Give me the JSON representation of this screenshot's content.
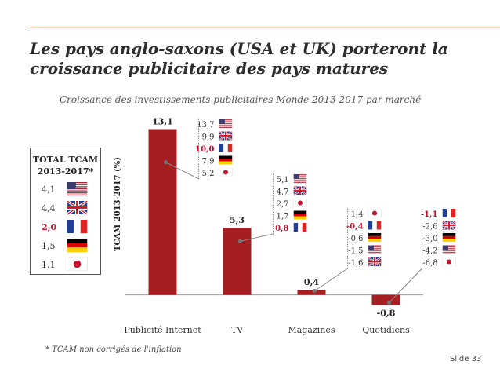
{
  "header": {
    "title": "Les pays anglo-saxons (USA et UK) porteront la croissance publicitaire des pays matures",
    "subtitle": "Croissance des investissements publicitaires Monde 2013-2017 par marché"
  },
  "total_box": {
    "title": "TOTAL TCAM",
    "subtitle": "2013-2017*",
    "rows": [
      {
        "value": "4,1",
        "country": "usa",
        "highlight": false
      },
      {
        "value": "4,4",
        "country": "uk",
        "highlight": false
      },
      {
        "value": "2,0",
        "country": "france",
        "highlight": true
      },
      {
        "value": "1,5",
        "country": "germany",
        "highlight": false
      },
      {
        "value": "1,1",
        "country": "japan",
        "highlight": false
      }
    ]
  },
  "chart_data": {
    "type": "bar",
    "ylabel": "TCAM 2013-2017 (%)",
    "categories": [
      "Publicité Internet",
      "TV",
      "Magazines",
      "Quotidiens"
    ],
    "values": [
      13.1,
      5.3,
      0.4,
      -0.8
    ],
    "value_labels": [
      "13,1",
      "5,3",
      "0,4",
      "-0,8"
    ],
    "ylim": [
      -1.2,
      14
    ],
    "bar_color": "#a41e22",
    "country_breakdown": [
      [
        {
          "value": "13,7",
          "country": "usa",
          "highlight": false
        },
        {
          "value": "9,9",
          "country": "uk",
          "highlight": false
        },
        {
          "value": "10,0",
          "country": "france",
          "highlight": true
        },
        {
          "value": "7,9",
          "country": "germany",
          "highlight": false
        },
        {
          "value": "5,2",
          "country": "japan",
          "highlight": false
        }
      ],
      [
        {
          "value": "5,1",
          "country": "usa",
          "highlight": false
        },
        {
          "value": "4,7",
          "country": "uk",
          "highlight": false
        },
        {
          "value": "2,7",
          "country": "japan",
          "highlight": false
        },
        {
          "value": "1,7",
          "country": "germany",
          "highlight": false
        },
        {
          "value": "0,8",
          "country": "france",
          "highlight": true
        }
      ],
      [
        {
          "value": "1,4",
          "country": "japan",
          "highlight": false
        },
        {
          "value": "-0,4",
          "country": "france",
          "highlight": true
        },
        {
          "value": "-0,6",
          "country": "germany",
          "highlight": false
        },
        {
          "value": "-1,5",
          "country": "usa",
          "highlight": false
        },
        {
          "value": "-1,6",
          "country": "uk",
          "highlight": false
        }
      ],
      [
        {
          "value": "-1,1",
          "country": "france",
          "highlight": true
        },
        {
          "value": "-2,6",
          "country": "uk",
          "highlight": false
        },
        {
          "value": "-3,0",
          "country": "germany",
          "highlight": false
        },
        {
          "value": "-4,2",
          "country": "usa",
          "highlight": false
        },
        {
          "value": "-6,8",
          "country": "japan",
          "highlight": false
        }
      ]
    ]
  },
  "colors": {
    "accent": "#e0301e",
    "highlight_text": "#c8102e",
    "connector": "#8a8a8a"
  },
  "footer": {
    "footnote": "* TCAM non corrigés de l'inflation",
    "slide": "Slide 33"
  }
}
